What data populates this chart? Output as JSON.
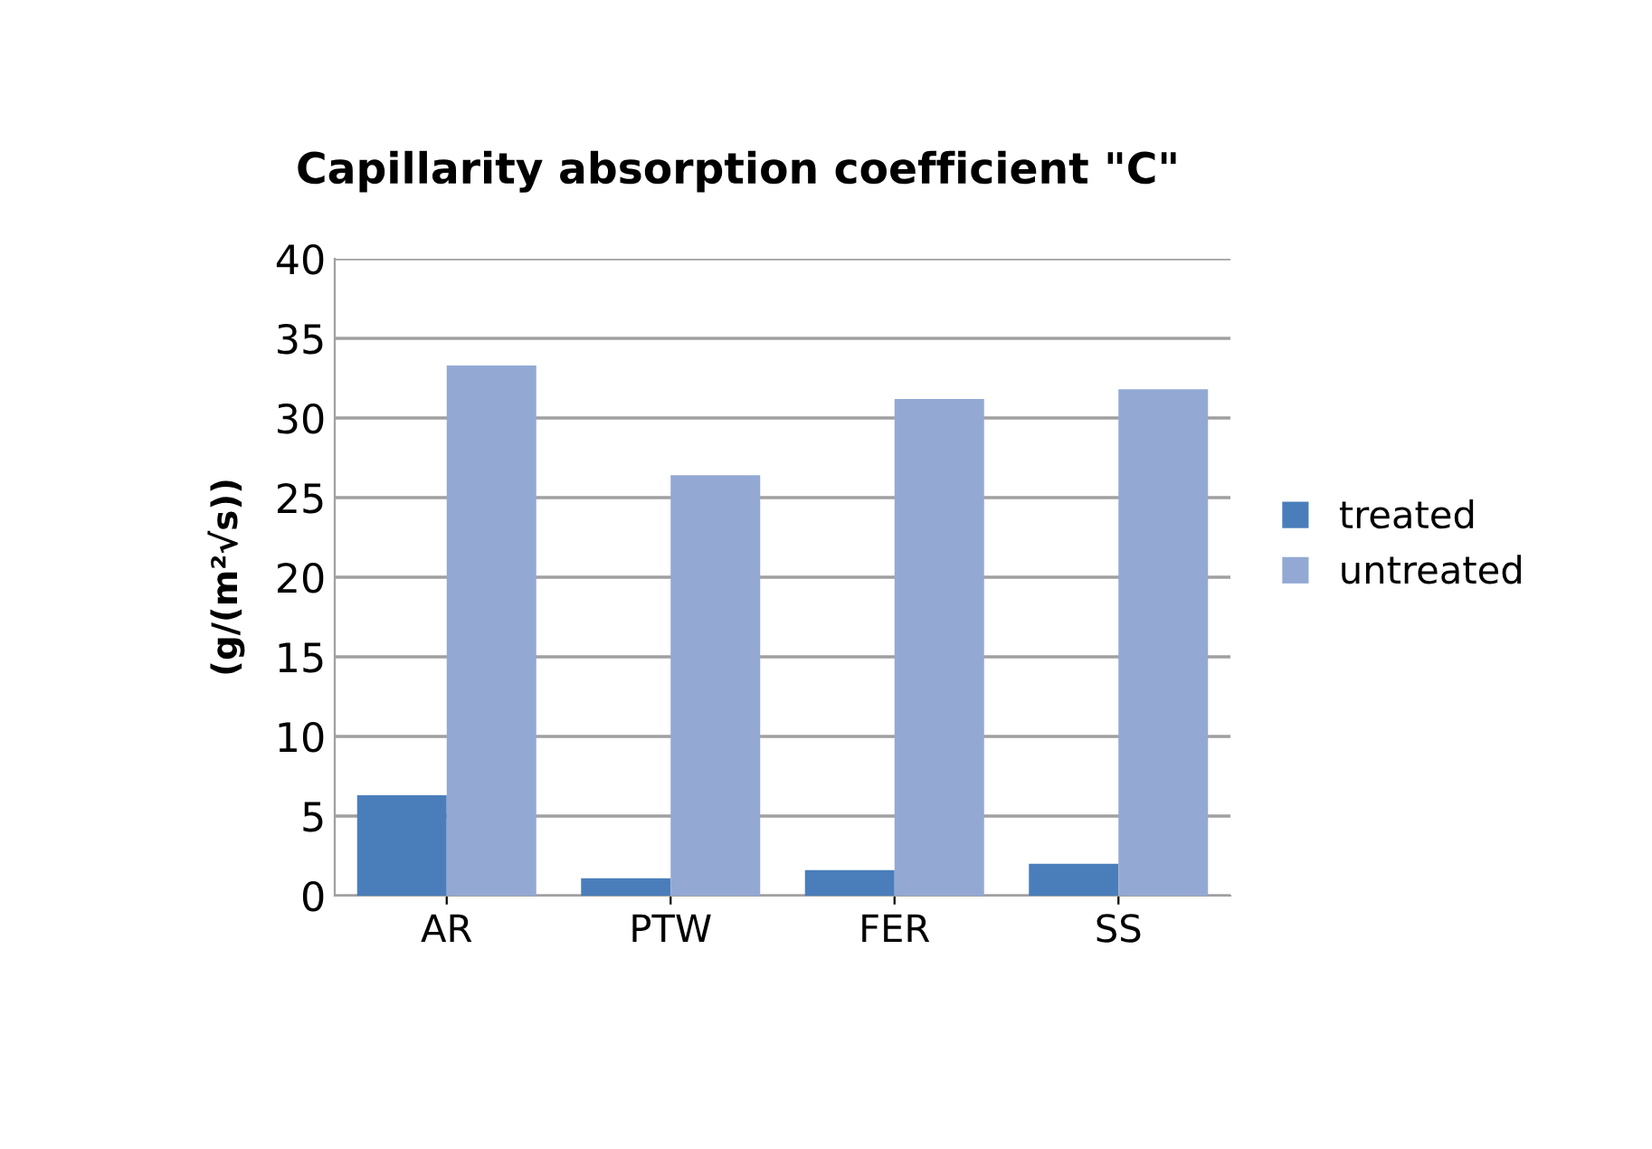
{
  "chart_data": {
    "type": "bar",
    "title": "Capillarity absorption coefficient \"C\"",
    "ylabel": "(g/(m²√s))",
    "categories": [
      "AR",
      "PTW",
      "FER",
      "SS"
    ],
    "series": [
      {
        "name": "treated",
        "color": "#4a7ebb",
        "values": [
          6.3,
          1.1,
          1.6,
          2.0
        ]
      },
      {
        "name": "untreated",
        "color": "#93a9d4",
        "values": [
          33.3,
          26.4,
          31.2,
          31.8
        ]
      }
    ],
    "ylim": [
      0,
      40
    ],
    "yticks": [
      0,
      5,
      10,
      15,
      20,
      25,
      30,
      35,
      40
    ],
    "grid": "y",
    "legend": "right"
  }
}
